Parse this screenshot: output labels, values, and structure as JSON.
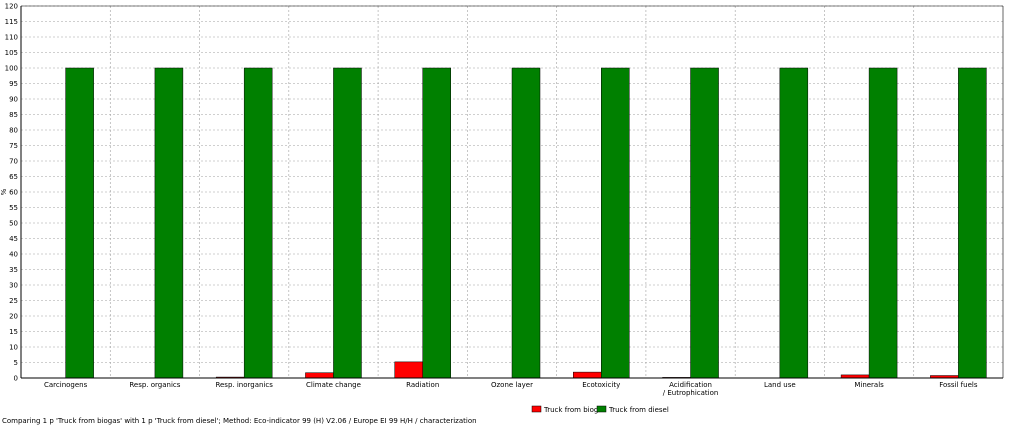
{
  "chart_data": {
    "type": "bar",
    "ylabel": "%",
    "ylim": [
      0,
      120
    ],
    "ytick_step": 5,
    "grid": true,
    "legend_position": "bottom-center",
    "categories": [
      [
        "Carcinogens"
      ],
      [
        "Resp. organics"
      ],
      [
        "Resp. inorganics"
      ],
      [
        "Climate change"
      ],
      [
        "Radiation"
      ],
      [
        "Ozone layer"
      ],
      [
        "Ecotoxicity"
      ],
      [
        "Acidification",
        "/ Eutrophication"
      ],
      [
        "Land use"
      ],
      [
        "Minerals"
      ],
      [
        "Fossil fuels"
      ]
    ],
    "series": [
      {
        "name": "Truck from biogas",
        "color": "#ff0000",
        "values": [
          0,
          0,
          0.3,
          1.7,
          5.2,
          0,
          1.9,
          0.2,
          0,
          1.0,
          0.8
        ]
      },
      {
        "name": "Truck from diesel",
        "color": "#008000",
        "values": [
          100,
          100,
          100,
          100,
          100,
          100,
          100,
          100,
          100,
          100,
          100
        ]
      }
    ]
  },
  "caption": "Comparing 1 p 'Truck from biogas' with 1 p 'Truck from diesel';  Method: Eco-indicator 99 (H) V2.06 / Europe EI 99 H/H / characterization"
}
